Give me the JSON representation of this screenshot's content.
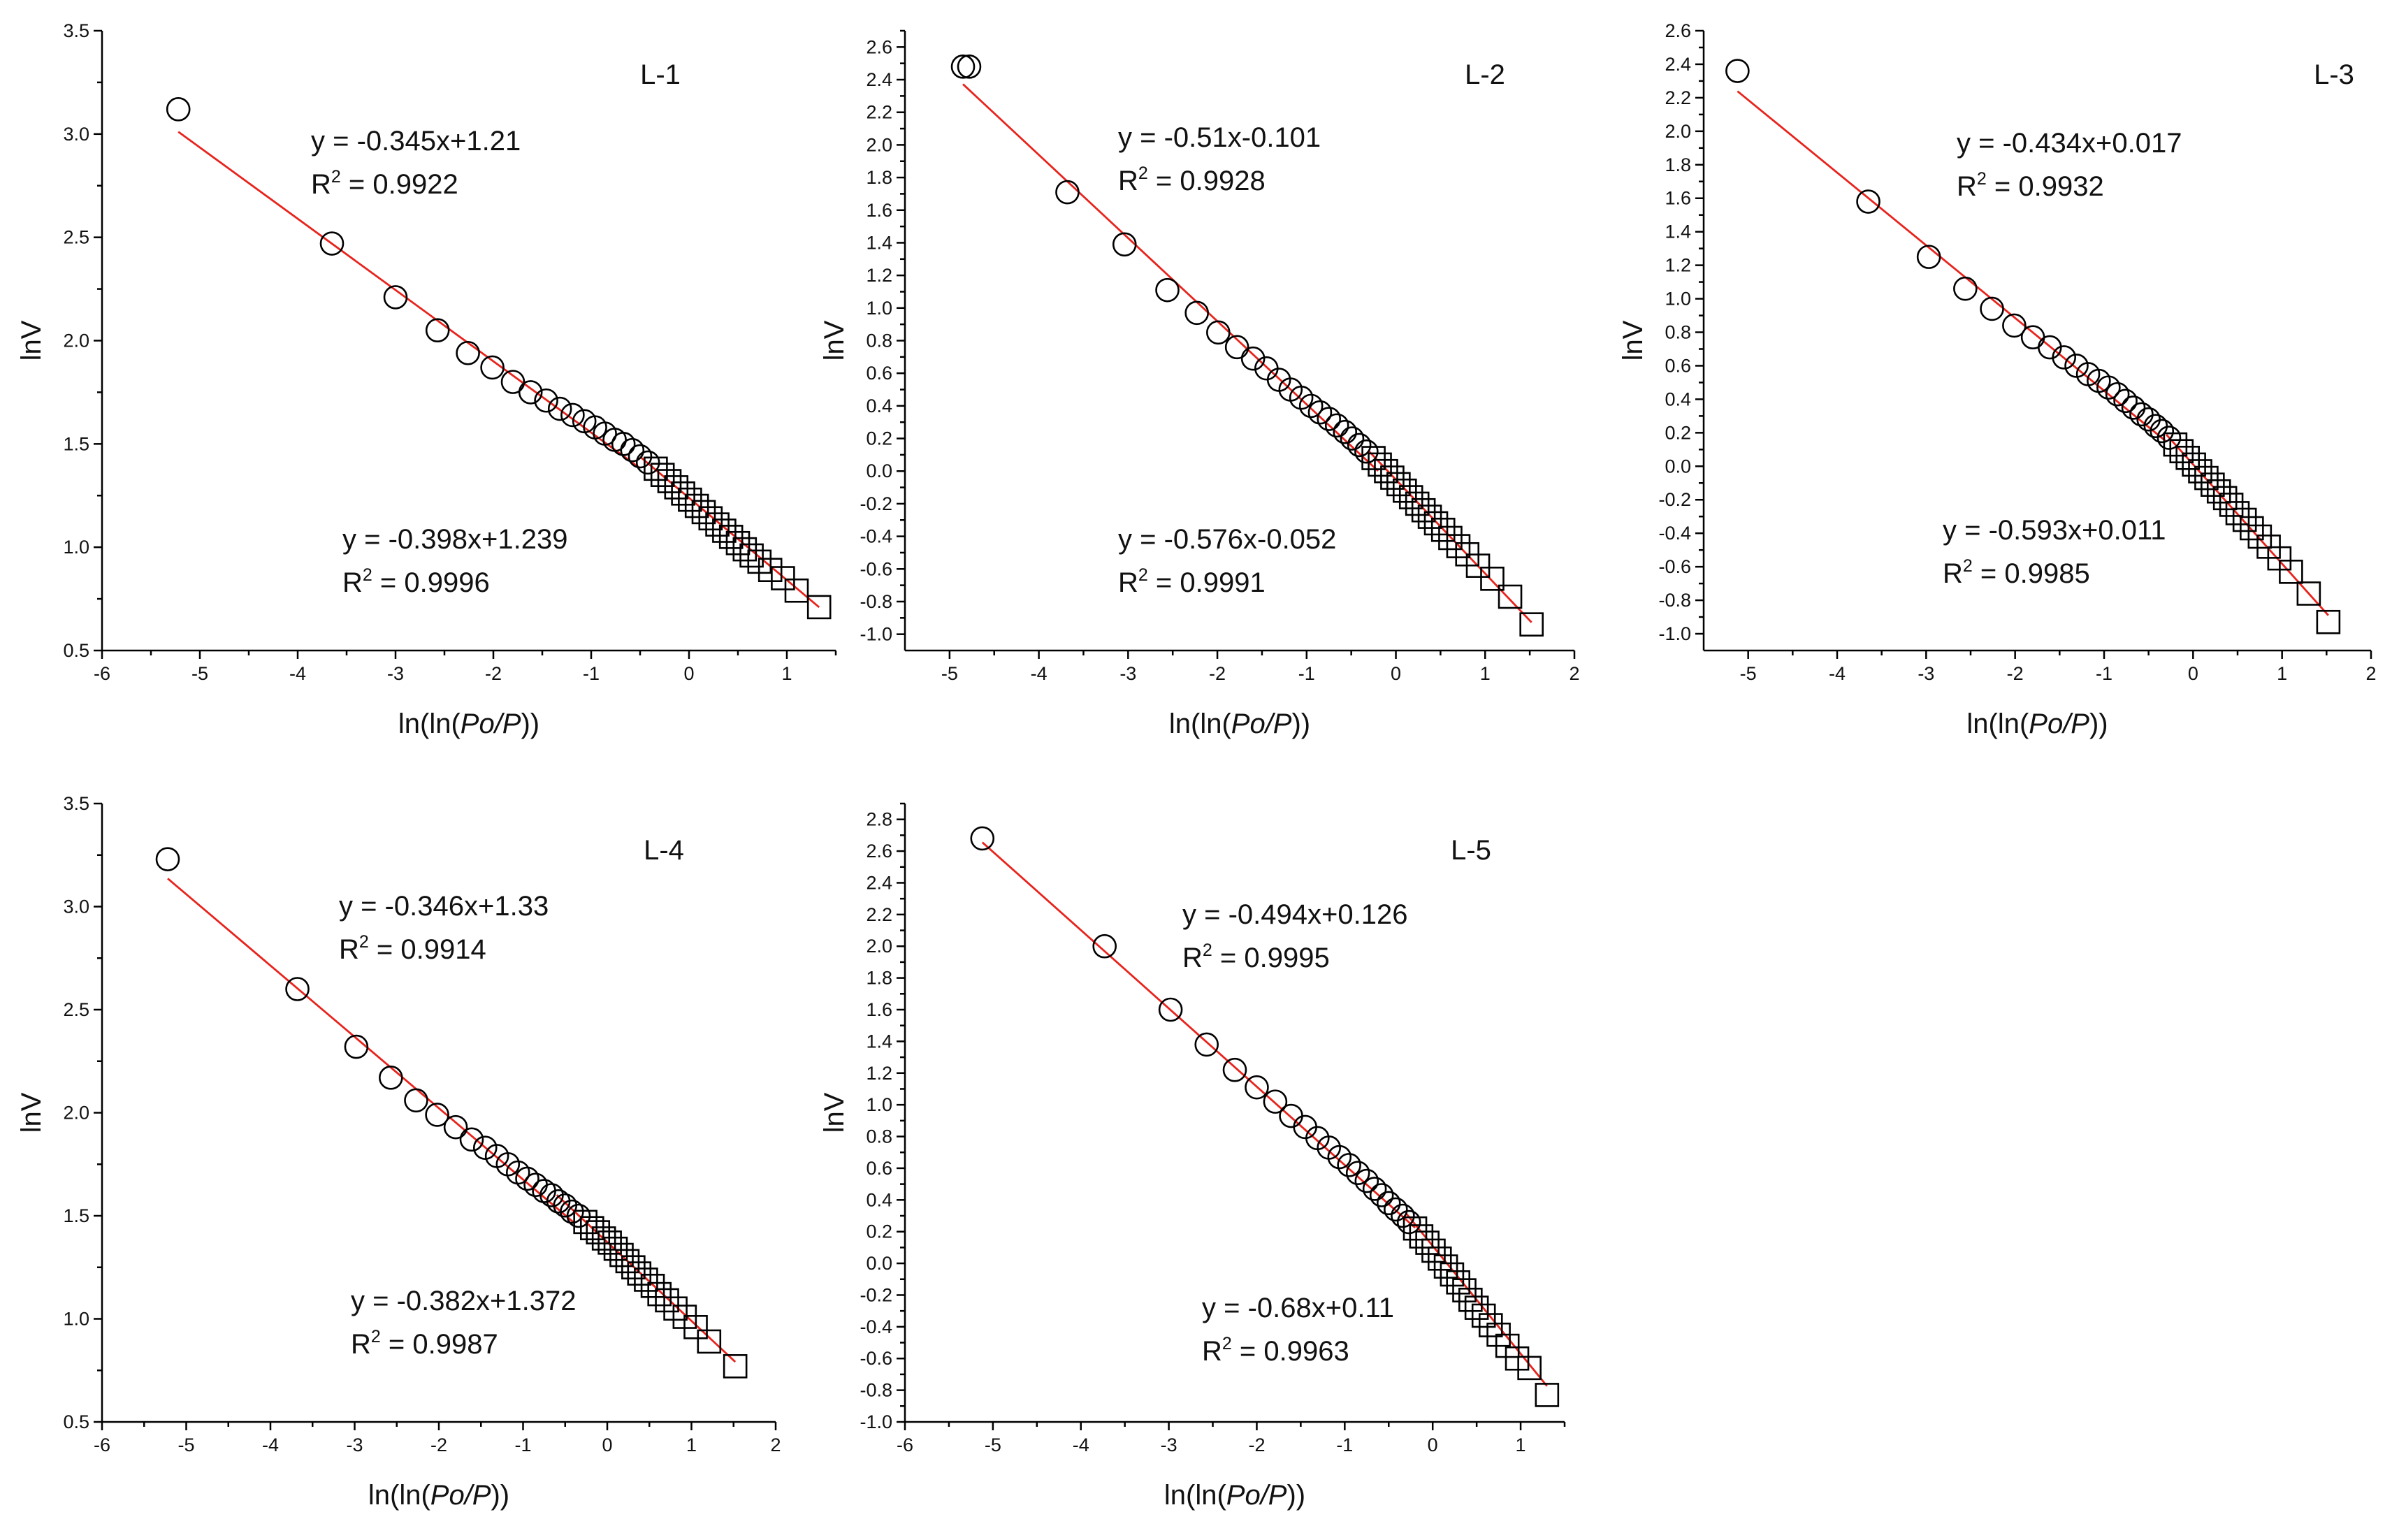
{
  "chart_data": [
    {
      "type": "scatter",
      "label": "L-1",
      "xlabel": "ln(ln(Po/P))",
      "ylabel": "lnV",
      "xlim": [
        -6,
        1.5
      ],
      "ylim": [
        0.5,
        3.5
      ],
      "xticks": [
        -6,
        -5,
        -4,
        -3,
        -2,
        -1,
        0,
        1
      ],
      "yticks": [
        0.5,
        1.0,
        1.5,
        2.0,
        2.5,
        3.0,
        3.5
      ],
      "circles": {
        "x": [
          -5.22,
          -3.65,
          -3.0,
          -2.57,
          -2.26,
          -2.01,
          -1.8,
          -1.62,
          -1.46,
          -1.32,
          -1.19,
          -1.07,
          -0.96,
          -0.86,
          -0.76,
          -0.67,
          -0.58,
          -0.5,
          -0.42
        ],
        "y": [
          3.12,
          2.47,
          2.21,
          2.05,
          1.94,
          1.87,
          1.8,
          1.75,
          1.71,
          1.67,
          1.64,
          1.61,
          1.58,
          1.55,
          1.52,
          1.5,
          1.47,
          1.44,
          1.41
        ]
      },
      "squares": {
        "x": [
          -0.34,
          -0.27,
          -0.2,
          -0.13,
          -0.06,
          0.01,
          0.08,
          0.15,
          0.22,
          0.29,
          0.36,
          0.43,
          0.5,
          0.57,
          0.64,
          0.72,
          0.83,
          0.96,
          1.1,
          1.33
        ],
        "y": [
          1.38,
          1.35,
          1.32,
          1.29,
          1.26,
          1.23,
          1.2,
          1.17,
          1.14,
          1.11,
          1.08,
          1.05,
          1.02,
          0.99,
          0.96,
          0.93,
          0.89,
          0.85,
          0.79,
          0.71
        ]
      },
      "fits": [
        {
          "equation": "y = -0.345x+1.21",
          "r2_label": "R",
          "r2_value": "= 0.9922",
          "slope": -0.345,
          "intercept": 1.21,
          "xrange": [
            -5.22,
            -0.5
          ]
        },
        {
          "equation": "y = -0.398x+1.239",
          "r2_label": "R",
          "r2_value": "= 0.9996",
          "slope": -0.398,
          "intercept": 1.239,
          "xrange": [
            -0.5,
            1.33
          ]
        }
      ]
    },
    {
      "type": "scatter",
      "label": "L-2",
      "xlabel": "ln(ln(Po/P))",
      "ylabel": "lnV",
      "xlim": [
        -5.5,
        2
      ],
      "ylim": [
        -1.1,
        2.7
      ],
      "xticks": [
        -5,
        -4,
        -3,
        -2,
        -1,
        0,
        1,
        2
      ],
      "yticks": [
        -1.0,
        -0.8,
        -0.6,
        -0.4,
        -0.2,
        0.0,
        0.2,
        0.4,
        0.6,
        0.8,
        1.0,
        1.2,
        1.4,
        1.6,
        1.8,
        2.0,
        2.2,
        2.4,
        2.6
      ],
      "circles": {
        "x": [
          -4.85,
          -4.78,
          -3.68,
          -3.04,
          -2.56,
          -2.23,
          -1.99,
          -1.78,
          -1.6,
          -1.45,
          -1.31,
          -1.18,
          -1.06,
          -0.95,
          -0.85,
          -0.75,
          -0.66,
          -0.57,
          -0.49,
          -0.41,
          -0.33
        ],
        "y": [
          2.48,
          2.48,
          1.71,
          1.39,
          1.11,
          0.97,
          0.85,
          0.76,
          0.69,
          0.63,
          0.56,
          0.5,
          0.45,
          0.4,
          0.36,
          0.32,
          0.28,
          0.24,
          0.2,
          0.16,
          0.12
        ]
      },
      "squares": {
        "x": [
          -0.25,
          -0.18,
          -0.11,
          -0.04,
          0.03,
          0.1,
          0.17,
          0.24,
          0.31,
          0.38,
          0.45,
          0.53,
          0.61,
          0.7,
          0.8,
          0.92,
          1.08,
          1.28,
          1.52
        ],
        "y": [
          0.08,
          0.04,
          0.0,
          -0.04,
          -0.08,
          -0.12,
          -0.16,
          -0.2,
          -0.24,
          -0.28,
          -0.32,
          -0.36,
          -0.41,
          -0.46,
          -0.51,
          -0.58,
          -0.66,
          -0.77,
          -0.94
        ]
      },
      "fits": [
        {
          "equation": "y = -0.51x-0.101",
          "r2_label": "R",
          "r2_value": "= 0.9928",
          "slope": -0.51,
          "intercept": -0.101,
          "xrange": [
            -4.85,
            -0.2
          ]
        },
        {
          "equation": "y = -0.576x-0.052",
          "r2_label": "R",
          "r2_value": "= 0.9991",
          "slope": -0.576,
          "intercept": -0.052,
          "xrange": [
            -0.3,
            1.52
          ]
        }
      ]
    },
    {
      "type": "scatter",
      "label": "L-3",
      "xlabel": "ln(ln(Po/P))",
      "ylabel": "lnV",
      "xlim": [
        -5.5,
        2
      ],
      "ylim": [
        -1.1,
        2.6
      ],
      "xticks": [
        -5,
        -4,
        -3,
        -2,
        -1,
        0,
        1,
        2
      ],
      "yticks": [
        -1.0,
        -0.8,
        -0.6,
        -0.4,
        -0.2,
        0.0,
        0.2,
        0.4,
        0.6,
        0.8,
        1.0,
        1.2,
        1.4,
        1.6,
        1.8,
        2.0,
        2.2,
        2.4,
        2.6
      ],
      "circles": {
        "x": [
          -5.12,
          -3.65,
          -2.97,
          -2.56,
          -2.26,
          -2.01,
          -1.8,
          -1.61,
          -1.45,
          -1.31,
          -1.18,
          -1.06,
          -0.95,
          -0.85,
          -0.76,
          -0.67,
          -0.58,
          -0.5,
          -0.42,
          -0.35,
          -0.27
        ],
        "y": [
          2.36,
          1.58,
          1.25,
          1.06,
          0.94,
          0.84,
          0.77,
          0.71,
          0.65,
          0.6,
          0.55,
          0.51,
          0.47,
          0.43,
          0.39,
          0.35,
          0.31,
          0.28,
          0.24,
          0.21,
          0.17
        ]
      },
      "squares": {
        "x": [
          -0.2,
          -0.13,
          -0.06,
          0.01,
          0.08,
          0.15,
          0.22,
          0.29,
          0.36,
          0.43,
          0.5,
          0.58,
          0.66,
          0.75,
          0.85,
          0.97,
          1.1,
          1.3,
          1.52
        ],
        "y": [
          0.13,
          0.09,
          0.05,
          0.01,
          -0.03,
          -0.07,
          -0.11,
          -0.15,
          -0.19,
          -0.23,
          -0.28,
          -0.32,
          -0.37,
          -0.42,
          -0.48,
          -0.55,
          -0.63,
          -0.76,
          -0.93
        ]
      },
      "fits": [
        {
          "equation": "y = -0.434x+0.017",
          "r2_label": "R",
          "r2_value": "= 0.9932",
          "slope": -0.434,
          "intercept": 0.017,
          "xrange": [
            -5.12,
            -0.3
          ]
        },
        {
          "equation": "y = -0.593x+0.011",
          "r2_label": "R",
          "r2_value": "= 0.9985",
          "slope": -0.593,
          "intercept": 0.011,
          "xrange": [
            -0.3,
            1.52
          ]
        }
      ]
    },
    {
      "type": "scatter",
      "label": "L-4",
      "xlabel": "ln(ln(Po/P))",
      "ylabel": "lnV",
      "xlim": [
        -6,
        2
      ],
      "ylim": [
        0.5,
        3.5
      ],
      "xticks": [
        -6,
        -5,
        -4,
        -3,
        -2,
        -1,
        0,
        1,
        2
      ],
      "yticks": [
        0.5,
        1.0,
        1.5,
        2.0,
        2.5,
        3.0,
        3.5
      ],
      "circles": {
        "x": [
          -5.22,
          -3.68,
          -2.98,
          -2.57,
          -2.27,
          -2.02,
          -1.8,
          -1.61,
          -1.45,
          -1.31,
          -1.18,
          -1.06,
          -0.95,
          -0.85,
          -0.75,
          -0.66,
          -0.58,
          -0.5,
          -0.42,
          -0.34
        ],
        "y": [
          3.23,
          2.6,
          2.32,
          2.17,
          2.06,
          1.99,
          1.93,
          1.87,
          1.83,
          1.79,
          1.75,
          1.71,
          1.68,
          1.65,
          1.62,
          1.6,
          1.57,
          1.55,
          1.52,
          1.5
        ]
      },
      "squares": {
        "x": [
          -0.26,
          -0.18,
          -0.11,
          -0.04,
          0.03,
          0.1,
          0.17,
          0.24,
          0.31,
          0.38,
          0.46,
          0.54,
          0.62,
          0.71,
          0.81,
          0.92,
          1.05,
          1.21,
          1.52
        ],
        "y": [
          1.47,
          1.44,
          1.42,
          1.39,
          1.37,
          1.34,
          1.31,
          1.28,
          1.25,
          1.22,
          1.19,
          1.16,
          1.12,
          1.09,
          1.05,
          1.01,
          0.96,
          0.89,
          0.77
        ]
      },
      "fits": [
        {
          "equation": "y = -0.346x+1.33",
          "r2_label": "R",
          "r2_value": "= 0.9914",
          "slope": -0.346,
          "intercept": 1.33,
          "xrange": [
            -5.22,
            -0.4
          ]
        },
        {
          "equation": "y = -0.382x+1.372",
          "r2_label": "R",
          "r2_value": "= 0.9987",
          "slope": -0.382,
          "intercept": 1.372,
          "xrange": [
            -0.6,
            1.52
          ]
        }
      ]
    },
    {
      "type": "scatter",
      "label": "L-5",
      "xlabel": "ln(ln(Po/P))",
      "ylabel": "lnV",
      "xlim": [
        -6,
        1.5
      ],
      "ylim": [
        -1.0,
        2.9
      ],
      "xticks": [
        -6,
        -5,
        -4,
        -3,
        -2,
        -1,
        0,
        1
      ],
      "yticks": [
        -1.0,
        -0.8,
        -0.6,
        -0.4,
        -0.2,
        0.0,
        0.2,
        0.4,
        0.6,
        0.8,
        1.0,
        1.2,
        1.4,
        1.6,
        1.8,
        2.0,
        2.2,
        2.4,
        2.6,
        2.8
      ],
      "circles": {
        "x": [
          -5.12,
          -3.73,
          -2.98,
          -2.57,
          -2.25,
          -2.0,
          -1.79,
          -1.61,
          -1.45,
          -1.31,
          -1.18,
          -1.06,
          -0.95,
          -0.85,
          -0.75,
          -0.66,
          -0.58,
          -0.5,
          -0.42,
          -0.34,
          -0.27
        ],
        "y": [
          2.68,
          2.0,
          1.6,
          1.38,
          1.22,
          1.11,
          1.02,
          0.93,
          0.86,
          0.79,
          0.73,
          0.67,
          0.62,
          0.57,
          0.52,
          0.47,
          0.43,
          0.38,
          0.34,
          0.3,
          0.26
        ]
      },
      "squares": {
        "x": [
          -0.2,
          -0.13,
          -0.06,
          0.01,
          0.08,
          0.15,
          0.22,
          0.29,
          0.36,
          0.43,
          0.5,
          0.58,
          0.66,
          0.75,
          0.85,
          0.96,
          1.1,
          1.3
        ],
        "y": [
          0.22,
          0.17,
          0.13,
          0.08,
          0.03,
          -0.02,
          -0.07,
          -0.12,
          -0.17,
          -0.23,
          -0.28,
          -0.33,
          -0.39,
          -0.45,
          -0.52,
          -0.6,
          -0.66,
          -0.83
        ]
      },
      "fits": [
        {
          "equation": "y = -0.494x+0.126",
          "r2_label": "R",
          "r2_value": "= 0.9995",
          "slope": -0.494,
          "intercept": 0.126,
          "xrange": [
            -5.12,
            -0.2
          ]
        },
        {
          "equation": "y = -0.68x+0.11",
          "r2_label": "R",
          "r2_value": "= 0.9963",
          "slope": -0.68,
          "intercept": 0.11,
          "xrange": [
            -0.3,
            1.3
          ]
        }
      ]
    }
  ]
}
